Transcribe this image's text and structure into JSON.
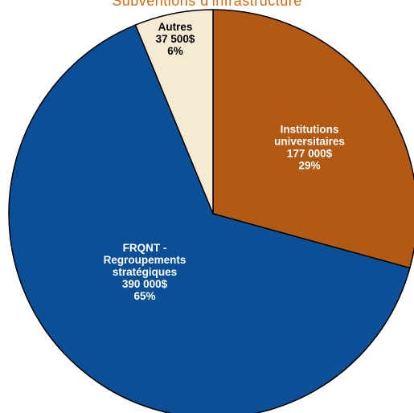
{
  "chart_data": {
    "type": "pie",
    "title": "Subventions d'infrastructure",
    "slices": [
      {
        "lines": [
          "Institutions",
          "universitaires"
        ],
        "value_label": "177 000$",
        "percent_label": "29%",
        "value": 177000,
        "color": "#b25a13",
        "text_color": "#ffffff"
      },
      {
        "lines": [
          "FRQNT -",
          "Regroupements",
          "stratégiques"
        ],
        "value_label": "390 000$",
        "percent_label": "65%",
        "value": 390000,
        "color": "#0b4f96",
        "text_color": "#ffffff"
      },
      {
        "lines": [
          "Autres"
        ],
        "value_label": "37 500$",
        "percent_label": "6%",
        "value": 37500,
        "color": "#f7ead3",
        "text_color": "#000000"
      }
    ],
    "start_angle_deg": 0,
    "direction": "clockwise",
    "legend": "none"
  }
}
